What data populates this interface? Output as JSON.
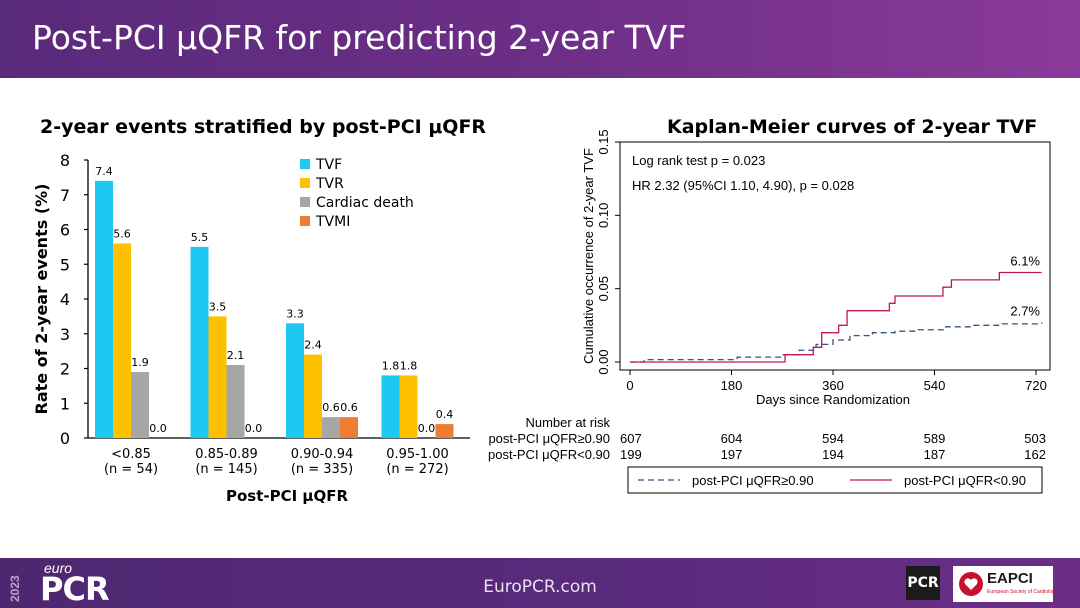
{
  "slide": {
    "title": "Post-PCI μQFR for predicting 2-year TVF",
    "footer_url": "EuroPCR.com",
    "logo": {
      "year": "2023",
      "prefix": "euro",
      "name": "PCR"
    },
    "partner_logos": {
      "pcr": "PCR",
      "eapci": "EAPCI",
      "eapci_sub": "European Society of Cardiology"
    }
  },
  "chart_data": [
    {
      "type": "bar",
      "title": "2-year events stratified by post-PCI μQFR",
      "xlabel": "Post-PCI μQFR",
      "ylabel": "Rate of 2-year events (%)",
      "ylim": [
        0,
        8
      ],
      "yticks": [
        "0",
        "1",
        "2",
        "3",
        "4",
        "5",
        "6",
        "7",
        "8"
      ],
      "categories": [
        "<0.85",
        "0.85-0.89",
        "0.90-0.94",
        "0.95-1.00"
      ],
      "category_n": [
        "(n = 54)",
        "(n = 145)",
        "(n = 335)",
        "(n = 272)"
      ],
      "legend_position": "top-right",
      "series": [
        {
          "name": "TVF",
          "color": "#1ec8f0",
          "values": [
            7.4,
            5.5,
            3.3,
            1.8
          ],
          "labels": [
            "7.4",
            "5.5",
            "3.3",
            "1.8"
          ]
        },
        {
          "name": "TVR",
          "color": "#ffc000",
          "values": [
            5.6,
            3.5,
            2.4,
            1.8
          ],
          "labels": [
            "5.6",
            "3.5",
            "2.4",
            "1.8"
          ]
        },
        {
          "name": "Cardiac death",
          "color": "#a6a6a6",
          "values": [
            1.9,
            2.1,
            0.6,
            0.0
          ],
          "labels": [
            "1.9",
            "2.1",
            "0.6",
            "0.0"
          ]
        },
        {
          "name": "TVMI",
          "color": "#ed7d31",
          "values": [
            0.0,
            0.0,
            0.6,
            0.4
          ],
          "labels": [
            "0.0",
            "0.0",
            "0.6",
            "0.4"
          ]
        }
      ]
    },
    {
      "type": "line",
      "title": "Kaplan-Meier curves of 2-year TVF",
      "xlabel": "Days since Randomization",
      "ylabel": "Cumulative occurrence of 2-year TVF",
      "xlim": [
        0,
        730
      ],
      "ylim": [
        0,
        0.15
      ],
      "xticks": [
        0,
        180,
        360,
        540,
        720
      ],
      "xtick_labels": [
        "0",
        "180",
        "360",
        "540",
        "720"
      ],
      "yticks": [
        0,
        0.05,
        0.1,
        0.15
      ],
      "ytick_labels": [
        "0.00",
        "0.05",
        "0.10",
        "0.15"
      ],
      "annotations": [
        "Log rank test p = 0.023",
        "HR 2.32 (95%CI 1.10, 4.90), p = 0.028"
      ],
      "series": [
        {
          "name": "post-PCI μQFR≥0.90",
          "color": "#33567a",
          "dash": true,
          "end_label": "2.7%",
          "x": [
            0,
            25,
            190,
            270,
            300,
            330,
            360,
            390,
            430,
            470,
            510,
            560,
            610,
            660,
            730
          ],
          "y": [
            0,
            0.0016,
            0.0033,
            0.005,
            0.008,
            0.012,
            0.015,
            0.018,
            0.02,
            0.021,
            0.022,
            0.024,
            0.025,
            0.026,
            0.027
          ]
        },
        {
          "name": "post-PCI μQFR<0.90",
          "color": "#c2185b",
          "dash": false,
          "end_label": "6.1%",
          "x": [
            0,
            275,
            325,
            340,
            370,
            385,
            460,
            470,
            555,
            570,
            655,
            730
          ],
          "y": [
            0,
            0.005,
            0.01,
            0.02,
            0.025,
            0.035,
            0.04,
            0.045,
            0.051,
            0.056,
            0.061,
            0.061
          ]
        }
      ],
      "risk_table": {
        "header": "Number at risk",
        "rows": [
          {
            "label": "post-PCI μQFR≥0.90",
            "values": [
              "607",
              "604",
              "594",
              "589",
              "503"
            ]
          },
          {
            "label": "post-PCI μQFR<0.90",
            "values": [
              "199",
              "197",
              "194",
              "187",
              "162"
            ]
          }
        ]
      }
    }
  ]
}
